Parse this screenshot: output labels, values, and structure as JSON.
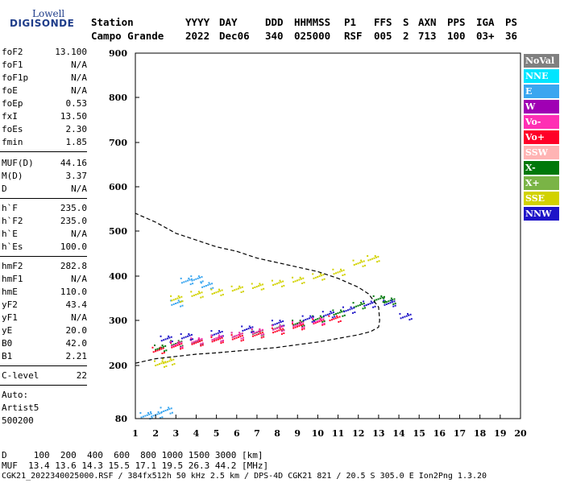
{
  "logo": {
    "line1": "Lowell",
    "line2": "DIGISONDE"
  },
  "header": {
    "row1": [
      "Station",
      "YYYY",
      "DAY",
      "DDD",
      "HHMMSS",
      "P1",
      "FFS",
      "S",
      "AXN",
      "PPS",
      "IGA",
      "PS"
    ],
    "row2": [
      "Campo Grande",
      "2022",
      "Dec06",
      "340",
      "025000",
      "RSF",
      "005",
      "2",
      "713",
      "100",
      "03+",
      "36"
    ]
  },
  "params": {
    "group1": [
      {
        "k": "foF2",
        "v": "13.100"
      },
      {
        "k": "foF1",
        "v": "N/A"
      },
      {
        "k": "foF1p",
        "v": "N/A"
      },
      {
        "k": "foE",
        "v": "N/A"
      },
      {
        "k": "foEp",
        "v": "0.53"
      },
      {
        "k": "fxI",
        "v": "13.50"
      },
      {
        "k": "foEs",
        "v": "2.30"
      },
      {
        "k": "fmin",
        "v": "1.85"
      }
    ],
    "group2": [
      {
        "k": "MUF(D)",
        "v": "44.16"
      },
      {
        "k": "M(D)",
        "v": "3.37"
      },
      {
        "k": "D",
        "v": "N/A"
      }
    ],
    "group3": [
      {
        "k": "h`F",
        "v": "235.0"
      },
      {
        "k": "h`F2",
        "v": "235.0"
      },
      {
        "k": "h`E",
        "v": "N/A"
      },
      {
        "k": "h`Es",
        "v": "100.0"
      }
    ],
    "group4": [
      {
        "k": "hmF2",
        "v": "282.8"
      },
      {
        "k": "hmF1",
        "v": "N/A"
      },
      {
        "k": "hmE",
        "v": "110.0"
      },
      {
        "k": "yF2",
        "v": "43.4"
      },
      {
        "k": "yF1",
        "v": "N/A"
      },
      {
        "k": "yE",
        "v": "20.0"
      },
      {
        "k": "B0",
        "v": "42.0"
      },
      {
        "k": "B1",
        "v": "2.21"
      }
    ],
    "clevel": {
      "k": "C-level",
      "v": "22"
    },
    "auto": [
      "Auto:",
      "Artist5",
      "500200"
    ]
  },
  "legend": [
    {
      "label": "NoVal",
      "color": "#808080",
      "text": "#ffffff"
    },
    {
      "label": "NNE",
      "color": "#00e5ff",
      "text": "#ffffff"
    },
    {
      "label": "E",
      "color": "#3aa6f0",
      "text": "#ffffff"
    },
    {
      "label": "W",
      "color": "#a000b4",
      "text": "#ffffff"
    },
    {
      "label": "Vo-",
      "color": "#ff2fb4",
      "text": "#ffffff"
    },
    {
      "label": "Vo+",
      "color": "#ff0028",
      "text": "#ffffff"
    },
    {
      "label": "SSW",
      "color": "#ffb4b4",
      "text": "#ffffff"
    },
    {
      "label": "X-",
      "color": "#00780a",
      "text": "#ffffff"
    },
    {
      "label": "X+",
      "color": "#7ab446",
      "text": "#ffffff"
    },
    {
      "label": "SSE",
      "color": "#d2d200",
      "text": "#ffffff"
    },
    {
      "label": "NNW",
      "color": "#1e14c8",
      "text": "#ffffff"
    }
  ],
  "bottom": {
    "d_row": "D     100  200  400  600  800 1000 1500 3000 [km]",
    "muf_row": "MUF  13.4 13.6 14.3 15.5 17.1 19.5 26.3 44.2 [MHz]",
    "info_row": "CGK21_2022340025000.RSF / 384fx512h 50 kHz 2.5 km / DPS-4D CGK21 821 / 20.5 S 305.0 E Ion2Png 1.3.20"
  },
  "chart_data": {
    "type": "scatter",
    "title": "",
    "xlabel": "",
    "ylabel": "",
    "xlim": [
      1,
      20
    ],
    "ylim": [
      80,
      900
    ],
    "xticks": [
      1,
      2,
      3,
      4,
      5,
      6,
      7,
      8,
      9,
      10,
      11,
      12,
      13,
      14,
      15,
      16,
      17,
      18,
      19,
      20
    ],
    "yticks": [
      80,
      200,
      300,
      400,
      500,
      600,
      700,
      800,
      900
    ],
    "grid": false,
    "legend_position": "right",
    "series": [
      {
        "name": "X-",
        "color": "#00780a",
        "x": [
          2.2,
          3,
          4,
          5,
          6,
          7,
          8,
          9,
          10,
          11,
          12,
          13,
          13.5
        ],
        "y": [
          240,
          250,
          255,
          262,
          268,
          275,
          285,
          295,
          305,
          318,
          335,
          350,
          345
        ]
      },
      {
        "name": "Vo+",
        "color": "#ff0028",
        "x": [
          2.1,
          3,
          4,
          5,
          6,
          7,
          8,
          9,
          10,
          10.8
        ],
        "y": [
          235,
          245,
          252,
          258,
          263,
          270,
          278,
          288,
          298,
          305
        ]
      },
      {
        "name": "NNW",
        "color": "#1e14c8",
        "x": [
          2.5,
          3.5,
          5,
          6.5,
          8,
          9.5,
          10.5,
          11.5,
          12.5,
          13.5,
          14.3
        ],
        "y": [
          260,
          265,
          272,
          282,
          295,
          305,
          315,
          325,
          338,
          340,
          310
        ]
      },
      {
        "name": "E",
        "color": "#3aa6f0",
        "x": [
          1.5,
          2.0,
          2.5,
          3,
          3.5,
          4,
          4.5
        ],
        "y": [
          88,
          90,
          100,
          340,
          390,
          395,
          380
        ]
      },
      {
        "name": "SSE",
        "color": "#d2d200",
        "x": [
          2.2,
          2.6,
          3,
          4,
          5,
          6,
          7,
          8,
          9,
          10,
          11,
          12,
          12.7
        ],
        "y": [
          205,
          210,
          350,
          360,
          365,
          372,
          378,
          385,
          392,
          400,
          410,
          430,
          440
        ]
      },
      {
        "name": "Vo-",
        "color": "#ff2fb4",
        "x": [
          3,
          4,
          5,
          6,
          7,
          8,
          9,
          10
        ],
        "y": [
          248,
          256,
          262,
          268,
          276,
          284,
          292,
          300
        ]
      }
    ],
    "profile_curve": {
      "x": [
        1.0,
        1.5,
        2,
        3,
        4,
        5,
        6,
        7,
        8,
        9,
        10,
        11,
        12,
        12.6,
        13.0,
        13.05,
        13.0,
        12.5,
        12,
        11,
        10,
        9,
        8,
        7,
        6,
        5,
        4,
        3,
        2,
        1.5,
        1.0
      ],
      "y": [
        205,
        210,
        215,
        220,
        225,
        228,
        232,
        236,
        240,
        246,
        252,
        260,
        268,
        275,
        285,
        300,
        330,
        360,
        375,
        395,
        410,
        420,
        430,
        440,
        455,
        465,
        480,
        495,
        520,
        530,
        540
      ]
    }
  }
}
